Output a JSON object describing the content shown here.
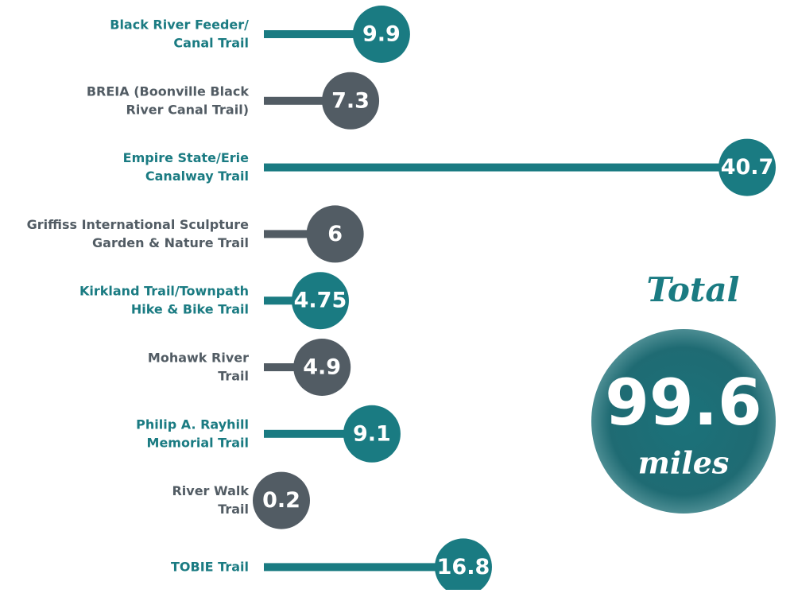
{
  "chart_data": {
    "type": "lollipop",
    "categories": [
      [
        "Black River Feeder/",
        "Canal Trail"
      ],
      [
        "BREIA (Boonville Black",
        "River Canal Trail)"
      ],
      [
        "Empire State/Erie",
        "Canalway Trail"
      ],
      [
        "Griffiss International Sculpture",
        "Garden & Nature Trail"
      ],
      [
        "Kirkland Trail/Townpath",
        "Hike & Bike Trail"
      ],
      [
        "Mohawk River",
        "Trail"
      ],
      [
        "Philip A. Rayhill",
        "Memorial Trail"
      ],
      [
        "River Walk",
        "Trail"
      ],
      [
        "TOBIE Trail"
      ]
    ],
    "values": [
      9.9,
      7.3,
      40.7,
      6,
      4.75,
      4.9,
      9.1,
      0.2,
      16.8
    ],
    "colors": [
      "#1a7b82",
      "#525c64",
      "#1a7b82",
      "#525c64",
      "#1a7b82",
      "#525c64",
      "#1a7b82",
      "#525c64",
      "#1a7b82"
    ],
    "total": {
      "title": "Total",
      "value": 99.6,
      "unit": "miles",
      "color": "#1a7b82"
    }
  }
}
